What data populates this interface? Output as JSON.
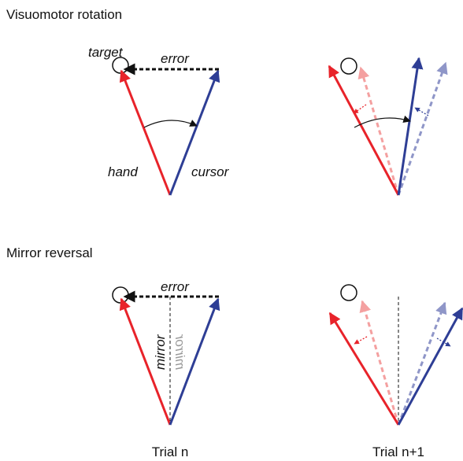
{
  "sections": [
    {
      "title": "Visuomotor rotation",
      "labels": {
        "target": "target",
        "error": "error",
        "hand": "hand",
        "cursor": "cursor"
      }
    },
    {
      "title": "Mirror reversal",
      "labels": {
        "error": "error",
        "mirror": "mirror",
        "mirror_reflected": "mirror"
      }
    }
  ],
  "columns": [
    "Trial n",
    "Trial n+1"
  ]
}
